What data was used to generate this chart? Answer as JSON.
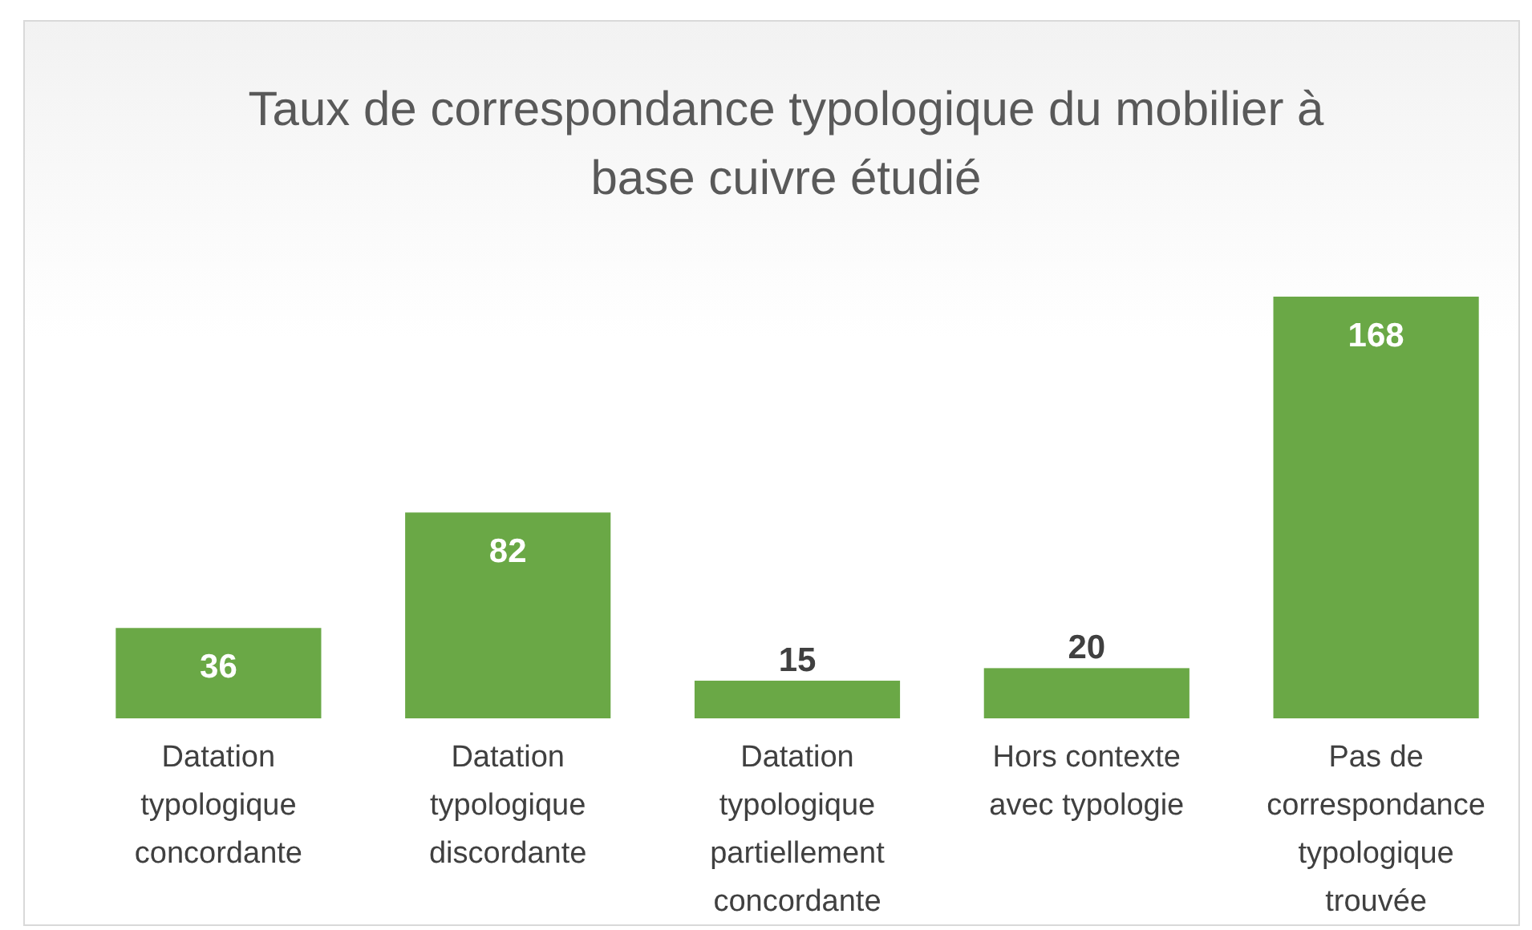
{
  "chart_data": {
    "type": "bar",
    "title": "Taux de correspondance typologique du mobilier à base cuivre étudié",
    "categories": [
      "Datation typologique concordante",
      "Datation typologique discordante",
      "Datation typologique partiellement concordante",
      "Hors contexte avec typologie",
      "Pas de correspondance typologique trouvée"
    ],
    "values": [
      36,
      82,
      15,
      20,
      168
    ],
    "color": "#6aa846",
    "data_labels": true
  }
}
